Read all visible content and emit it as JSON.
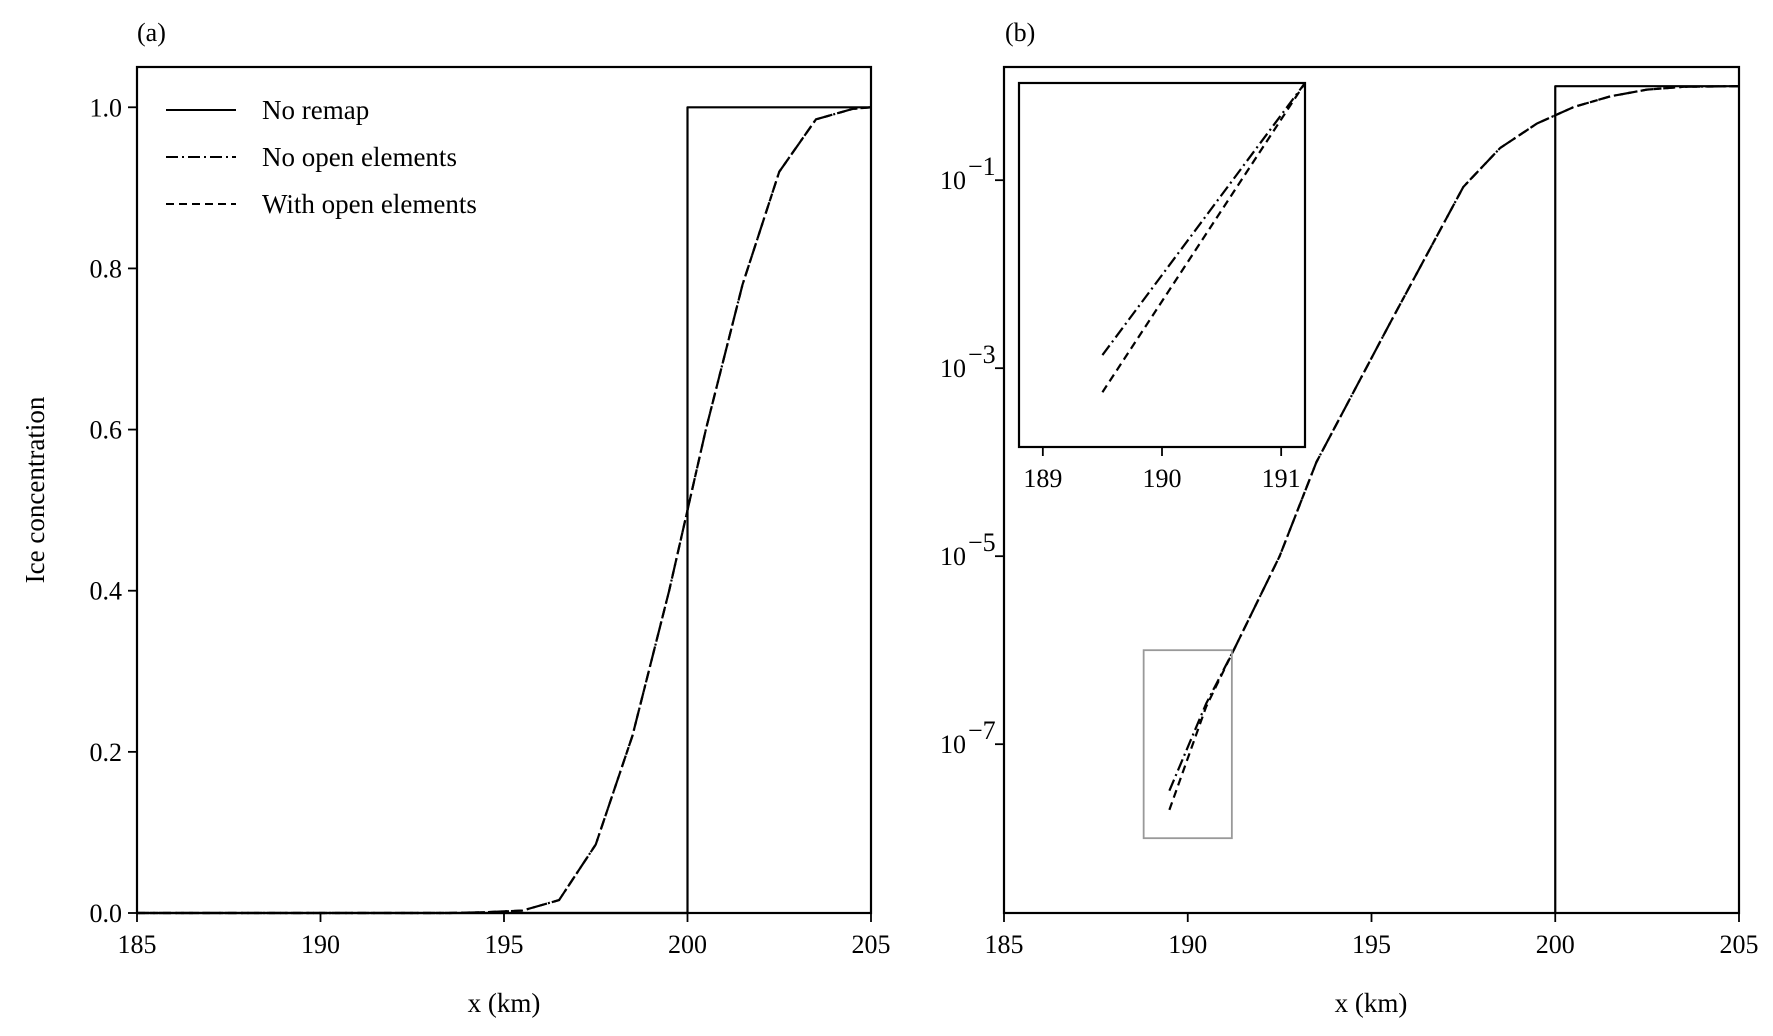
{
  "chart_data": [
    {
      "panel_label": "(a)",
      "type": "line",
      "xlabel": "x (km)",
      "ylabel": "Ice concentration",
      "xlim": [
        185,
        205
      ],
      "ylim": [
        0,
        1.05
      ],
      "yscale": "linear",
      "xticks": [
        185,
        190,
        195,
        200,
        205
      ],
      "xtick_labels": [
        "185",
        "190",
        "195",
        "200",
        "205"
      ],
      "yticks": [
        0.0,
        0.2,
        0.4,
        0.6,
        0.8,
        1.0
      ],
      "ytick_labels": [
        "0.0",
        "0.2",
        "0.4",
        "0.6",
        "0.8",
        "1.0"
      ],
      "grid": false,
      "legend_position": "top-left",
      "series": [
        {
          "name": "No remap",
          "style": "solid",
          "x": [
            185,
            200,
            200,
            205
          ],
          "y": [
            0,
            0,
            1.0,
            1.0
          ]
        },
        {
          "name": "No open elements",
          "style": "dashdot",
          "x": [
            185,
            193.5,
            194.5,
            195.5,
            196.5,
            197.5,
            198.5,
            199.5,
            200.5,
            201.5,
            202.5,
            203.5,
            204.5,
            205
          ],
          "y": [
            0,
            0.0,
            0.001,
            0.003,
            0.016,
            0.085,
            0.22,
            0.4,
            0.6,
            0.78,
            0.92,
            0.985,
            0.998,
            1.0
          ]
        },
        {
          "name": "With open elements",
          "style": "dashed",
          "x": [
            185,
            193.5,
            194.5,
            195.5,
            196.5,
            197.5,
            198.5,
            199.5,
            200.5,
            201.5,
            202.5,
            203.5,
            204.5,
            205
          ],
          "y": [
            0,
            0.0,
            0.001,
            0.003,
            0.016,
            0.085,
            0.22,
            0.4,
            0.6,
            0.78,
            0.92,
            0.985,
            0.998,
            1.0
          ]
        }
      ]
    },
    {
      "panel_label": "(b)",
      "type": "line",
      "xlabel": "x (km)",
      "ylabel": "",
      "xlim": [
        185,
        205
      ],
      "ylim": [
        1.6e-09,
        1.6
      ],
      "yscale": "log",
      "xticks": [
        185,
        190,
        195,
        200,
        205
      ],
      "xtick_labels": [
        "185",
        "190",
        "195",
        "200",
        "205"
      ],
      "yticks": [
        0.1,
        0.001,
        1e-05,
        1e-07
      ],
      "ytick_labels": [
        {
          "base": "10",
          "exp": "−1"
        },
        {
          "base": "10",
          "exp": "−3"
        },
        {
          "base": "10",
          "exp": "−5"
        },
        {
          "base": "10",
          "exp": "−7"
        }
      ],
      "grid": false,
      "series": [
        {
          "name": "No remap",
          "style": "solid",
          "x": [
            200,
            200,
            205
          ],
          "y": [
            1.6e-09,
            1.0,
            1.0
          ]
        },
        {
          "name": "No open elements",
          "style": "dashdot",
          "x": [
            189.5,
            190.5,
            191.25,
            192.5,
            193.5,
            195.5,
            197.5,
            198.5,
            199.5,
            200.5,
            201.5,
            202.5,
            203.5,
            205
          ],
          "y": [
            3.2e-08,
            2.7e-07,
            1e-06,
            1e-05,
            0.0001,
            0.003,
            0.085,
            0.22,
            0.4,
            0.6,
            0.78,
            0.92,
            0.985,
            1.0
          ]
        },
        {
          "name": "With open elements",
          "style": "dashed",
          "x": [
            189.5,
            190.5,
            191.25,
            192.5,
            193.5,
            195.5,
            197.5,
            198.5,
            199.5,
            200.5,
            201.5,
            202.5,
            203.5,
            205
          ],
          "y": [
            2e-08,
            2.5e-07,
            1e-06,
            1e-05,
            0.0001,
            0.003,
            0.085,
            0.22,
            0.4,
            0.6,
            0.78,
            0.92,
            0.985,
            1.0
          ]
        }
      ],
      "zoom_box": {
        "x": [
          188.8,
          191.2
        ],
        "y": [
          1e-08,
          1e-06
        ]
      },
      "inset": {
        "xlim": [
          188.8,
          191.2
        ],
        "ylim": [
          1e-08,
          1e-06
        ],
        "xticks": [
          189,
          190,
          191
        ],
        "xtick_labels": [
          "189",
          "190",
          "191"
        ],
        "series": [
          {
            "name": "No open elements",
            "style": "dashdot",
            "x": [
              189.5,
              191.2
            ],
            "y": [
              3.2e-08,
              1e-06
            ]
          },
          {
            "name": "With open elements",
            "style": "dashed",
            "x": [
              189.5,
              191.2
            ],
            "y": [
              2e-08,
              1e-06
            ]
          }
        ]
      }
    }
  ]
}
